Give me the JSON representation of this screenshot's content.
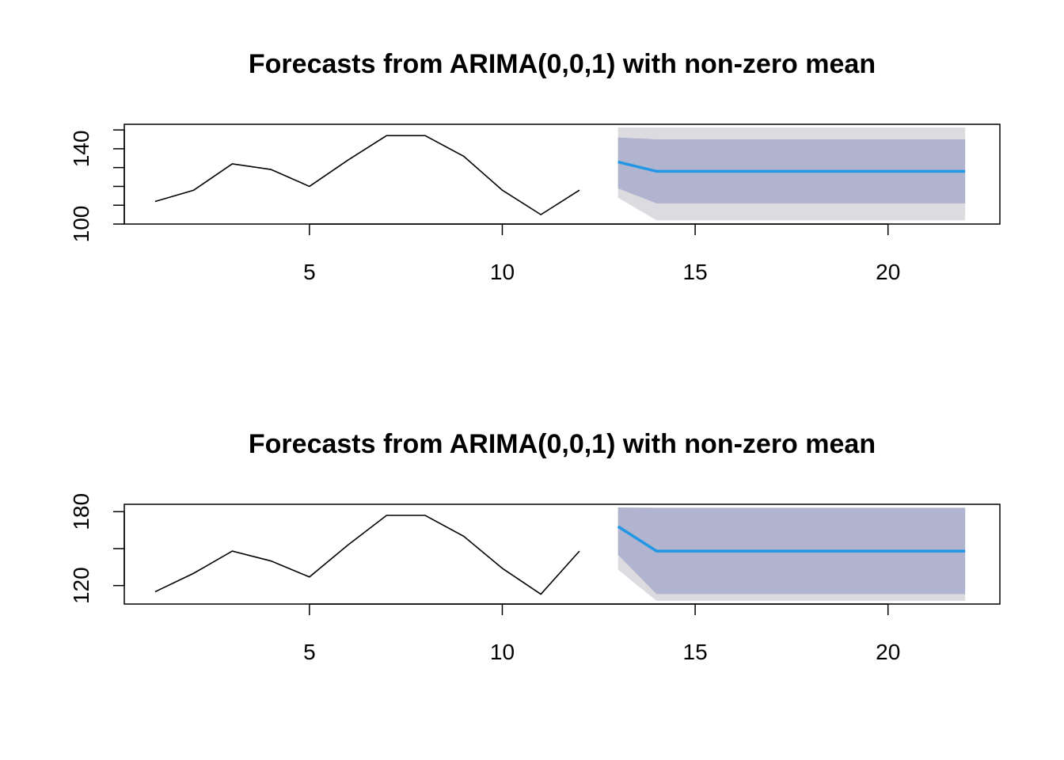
{
  "chart_data": [
    {
      "type": "line",
      "title": "Forecasts from ARIMA(0,0,1) with non-zero mean",
      "xlabel": "",
      "ylabel": "",
      "xlim": [
        0.2,
        22.9
      ],
      "ylim": [
        100,
        153
      ],
      "x_ticks": [
        5,
        10,
        15,
        20
      ],
      "y_ticks": [
        100,
        110,
        120,
        130,
        140,
        150
      ],
      "y_tick_labels": [
        {
          "value": 100,
          "label": "100"
        },
        {
          "value": 140,
          "label": "140"
        }
      ],
      "history": {
        "x": [
          1,
          2,
          3,
          4,
          5,
          6,
          7,
          8,
          9,
          10,
          11,
          12
        ],
        "y": [
          112,
          118,
          132,
          129,
          120,
          134,
          147,
          147,
          136,
          118,
          105,
          118
        ],
        "color": "#000000"
      },
      "forecast": {
        "x": [
          13,
          14,
          15,
          16,
          17,
          18,
          19,
          20,
          21,
          22
        ],
        "mean": [
          133,
          128,
          128,
          128,
          128,
          128,
          128,
          128,
          128,
          128
        ],
        "lo80": [
          119,
          111,
          111,
          111,
          111,
          111,
          111,
          111,
          111,
          111
        ],
        "hi80": [
          146,
          145,
          145,
          145,
          145,
          145,
          145,
          145,
          145,
          145
        ],
        "lo95": [
          114,
          102,
          102,
          102,
          102,
          102,
          102,
          102,
          102,
          102
        ],
        "hi95": [
          153,
          154,
          154,
          154,
          154,
          154,
          154,
          154,
          154,
          154
        ],
        "mean_color": "#2297E6",
        "band80_color": "#B0B4CE",
        "band95_color": "#DBDBE0"
      }
    },
    {
      "type": "line",
      "title": "Forecasts from ARIMA(0,0,1) with non-zero mean",
      "xlabel": "",
      "ylabel": "",
      "xlim": [
        0.2,
        22.9
      ],
      "ylim": [
        105,
        186
      ],
      "x_ticks": [
        5,
        10,
        15,
        20
      ],
      "y_ticks": [
        120,
        150,
        180
      ],
      "y_tick_labels": [
        {
          "value": 120,
          "label": "120"
        },
        {
          "value": 180,
          "label": "180"
        }
      ],
      "history": {
        "x": [
          1,
          2,
          3,
          4,
          5,
          6,
          7,
          8,
          9,
          10,
          11,
          12
        ],
        "y": [
          115,
          130,
          148,
          140,
          127,
          153,
          177,
          177,
          160,
          134,
          113,
          148
        ],
        "color": "#000000"
      },
      "forecast": {
        "x": [
          13,
          14,
          15,
          16,
          17,
          18,
          19,
          20,
          21,
          22
        ],
        "mean": [
          168,
          148,
          148,
          148,
          148,
          148,
          148,
          148,
          148,
          148
        ],
        "lo80": [
          145,
          113,
          113,
          113,
          113,
          113,
          113,
          113,
          113,
          113
        ],
        "hi80": [
          192,
          183,
          183,
          183,
          183,
          183,
          183,
          183,
          183,
          183
        ],
        "lo95": [
          133,
          95,
          95,
          95,
          95,
          95,
          95,
          95,
          95,
          95
        ],
        "hi95": [
          206,
          200,
          200,
          200,
          200,
          200,
          200,
          200,
          200,
          200
        ],
        "mean_color": "#2297E6",
        "band80_color": "#B0B4CE",
        "band95_color": "#DBDBE0"
      }
    }
  ]
}
